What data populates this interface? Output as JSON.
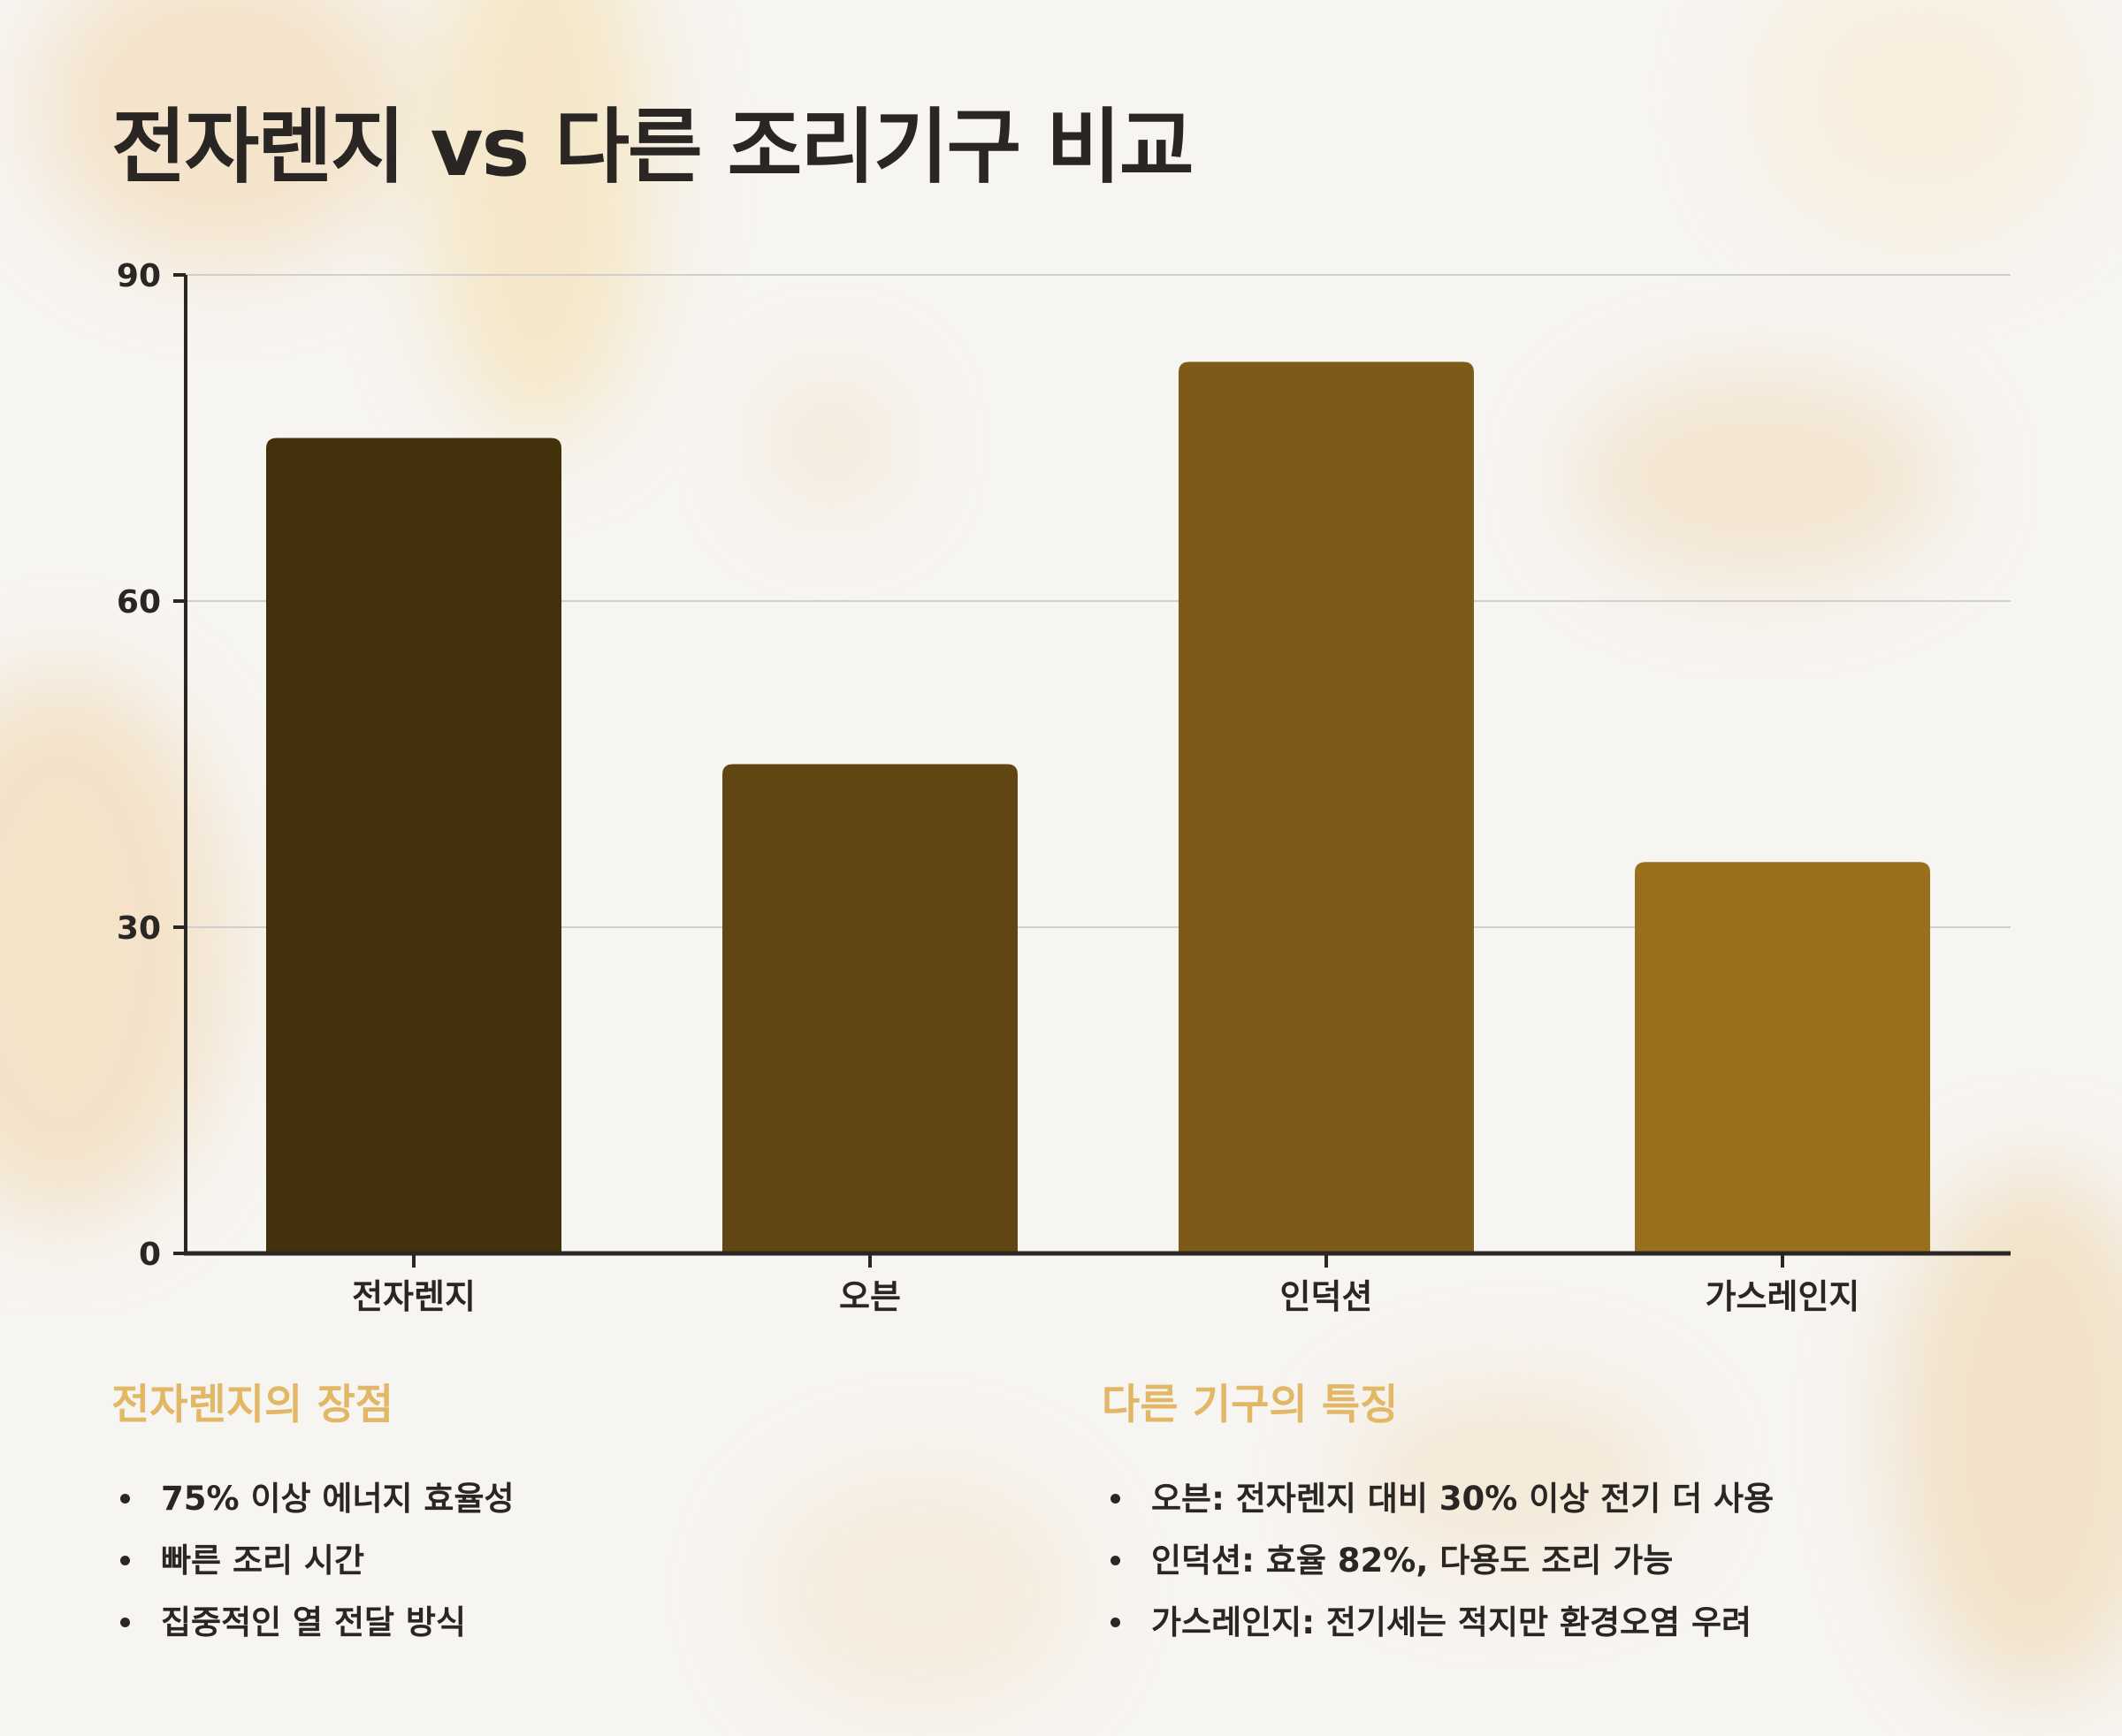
{
  "title": "전자렌지 vs 다른 조리기구 비교",
  "chart_data": {
    "type": "bar",
    "categories": [
      "전자렌지",
      "오븐",
      "인덕션",
      "가스레인지"
    ],
    "values": [
      75,
      45,
      82,
      36
    ],
    "colors": [
      "#43310c",
      "#5f4612",
      "#7d5a17",
      "#986f1d"
    ],
    "ylim": [
      0,
      90
    ],
    "yticks": [
      0,
      30,
      60,
      90
    ],
    "grid": true,
    "xlabel": "",
    "ylabel": ""
  },
  "left_panel": {
    "heading": "전자렌지의 장점",
    "items": [
      "75% 이상 에너지 효율성",
      "빠른 조리 시간",
      "집중적인 열 전달 방식"
    ]
  },
  "right_panel": {
    "heading": "다른 기구의 특징",
    "items": [
      "오븐: 전자렌지 대비 30% 이상 전기 더 사용",
      "인덕션: 효율 82%, 다용도 조리 가능",
      "가스레인지: 전기세는 적지만 환경오염 우려"
    ]
  },
  "colors": {
    "text": "#2a2624",
    "accent": "#e2b766",
    "grid": "#cfcfcf",
    "axis": "#2a2624"
  }
}
